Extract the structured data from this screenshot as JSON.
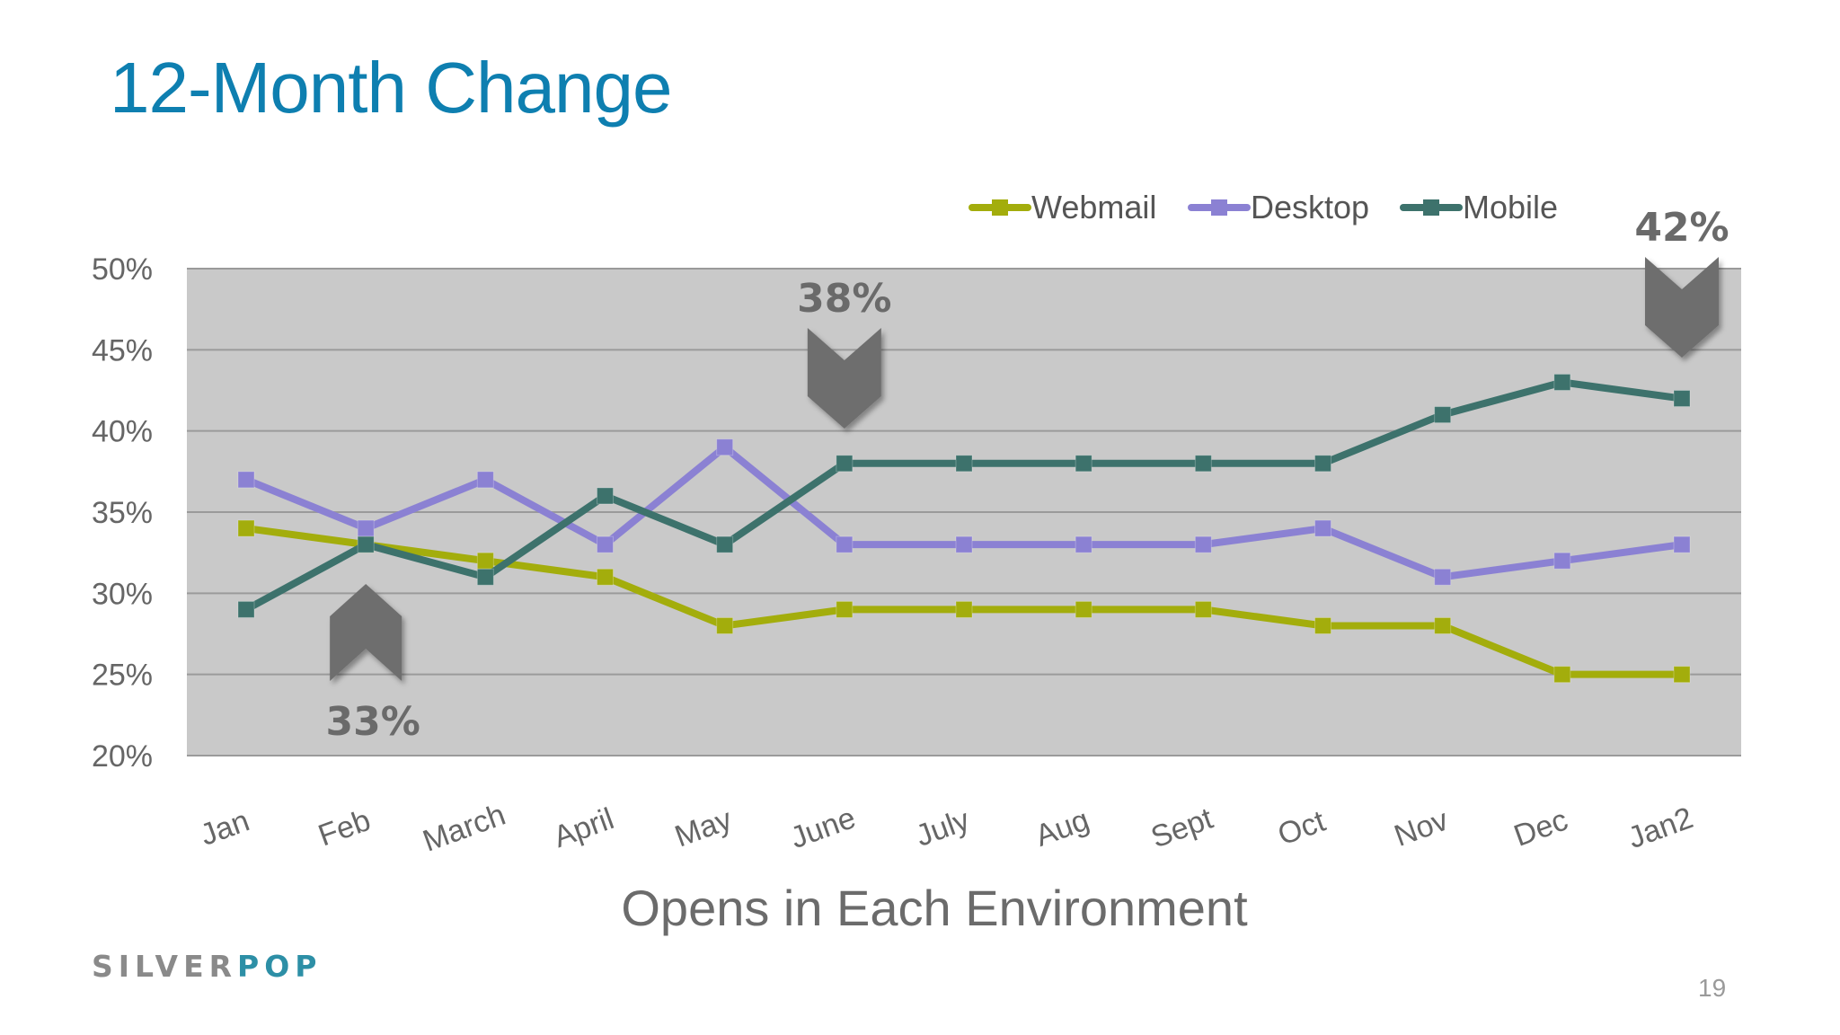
{
  "slide": {
    "title": "12-Month Change",
    "logo_silver": "SILVER",
    "logo_pop": "POP",
    "page_number": "19"
  },
  "chart_data": {
    "type": "line",
    "categories": [
      "Jan",
      "Feb",
      "March",
      "April",
      "May",
      "June",
      "July",
      "Aug",
      "Sept",
      "Oct",
      "Nov",
      "Dec",
      "Jan2"
    ],
    "series": [
      {
        "name": "Webmail",
        "color": "#a3ad0c",
        "values": [
          34,
          33,
          32,
          31,
          28,
          29,
          29,
          29,
          29,
          28,
          28,
          25,
          25
        ]
      },
      {
        "name": "Desktop",
        "color": "#8b81d3",
        "values": [
          37,
          34,
          37,
          33,
          39,
          33,
          33,
          33,
          33,
          34,
          31,
          32,
          33
        ]
      },
      {
        "name": "Mobile",
        "color": "#3d726c",
        "values": [
          29,
          33,
          31,
          36,
          33,
          38,
          38,
          38,
          38,
          38,
          41,
          43,
          42
        ]
      }
    ],
    "xlabel": "Opens in Each Environment",
    "ylabel": "",
    "ylim": [
      20,
      50
    ],
    "yticks": [
      "20%",
      "25%",
      "30%",
      "35%",
      "40%",
      "45%",
      "50%"
    ],
    "grid": true,
    "legend_position": "top-right",
    "plot_background": "#c9c9c9",
    "callouts": [
      {
        "label": "33%",
        "category": "Feb",
        "direction": "up"
      },
      {
        "label": "38%",
        "category": "June",
        "direction": "down"
      },
      {
        "label": "42%",
        "category": "Jan2",
        "direction": "down"
      }
    ]
  }
}
